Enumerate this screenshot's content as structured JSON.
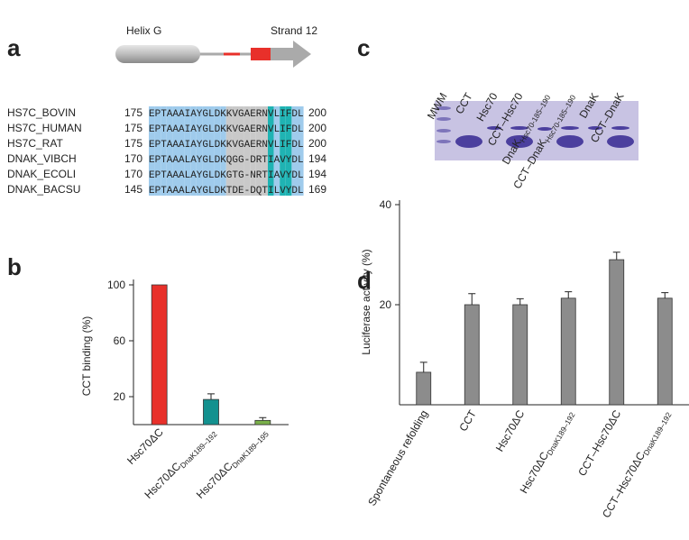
{
  "panel_labels": [
    "a",
    "b",
    "c",
    "d"
  ],
  "alignment": {
    "features": [
      "Helix G",
      "Strand 12"
    ],
    "rows": [
      {
        "name": "HS7C_BOVIN",
        "start": 175,
        "seq": "EPTAAAIAYGLDKKVGAERNVLIFDL",
        "end": 200
      },
      {
        "name": "HS7C_HUMAN",
        "start": 175,
        "seq": "EPTAAAIAYGLDKKVGAERNVLIFDL",
        "end": 200
      },
      {
        "name": "HS7C_RAT",
        "start": 175,
        "seq": "EPTAAAIAYGLDKKVGAERNVLIFDL",
        "end": 200
      },
      {
        "name": "DNAK_VIBCH",
        "start": 170,
        "seq": "EPTAAALAYGLDKQGG-DRTIAVYDL",
        "end": 194
      },
      {
        "name": "DNAK_ECOLI",
        "start": 170,
        "seq": "EPTAAALAYGLDKGTG-NRTIAVYDL",
        "end": 194
      },
      {
        "name": "DNAK_BACSU",
        "start": 145,
        "seq": "EPTAAALAYGLDKTDE-DQTILVYDL",
        "end": 169
      }
    ]
  },
  "gel": {
    "lanes": [
      "MWM",
      "CCT",
      "Hsc70",
      "CCT–Hsc70",
      "DnaK",
      "CCT–DnaK",
      "DnaK",
      "CCT–DnaK"
    ],
    "lane_subscripts": [
      null,
      null,
      null,
      null,
      "Hsc70-185–190",
      "Hsc70-185–190",
      null,
      null
    ]
  },
  "chart_data": [
    {
      "type": "bar",
      "y_label": "CCT binding (%)",
      "categories": [
        "Hsc70ΔC",
        "Hsc70ΔC",
        "Hsc70ΔC"
      ],
      "category_subscripts": [
        null,
        "DnaK189–192",
        "DnaK189–195"
      ],
      "values": [
        100,
        18,
        3
      ],
      "errors": [
        0,
        4,
        2
      ],
      "colors": [
        "#e8302a",
        "#13918f",
        "#7ab04a"
      ],
      "ylim": [
        0,
        100
      ],
      "yticks": [
        20,
        60,
        100
      ]
    },
    {
      "type": "bar",
      "y_label": "Luciferase activity (%)",
      "categories": [
        "Spontaneous refolding",
        "CCT",
        "Hsc70ΔC",
        "Hsc70ΔC",
        "CCT–Hsc70ΔC",
        "CCT–Hsc70ΔC"
      ],
      "category_subscripts": [
        null,
        null,
        null,
        "DnaK189–192",
        null,
        "DnaK189–192"
      ],
      "values": [
        6.5,
        20,
        20,
        21.3,
        29,
        21.3
      ],
      "errors": [
        2,
        2.2,
        1.2,
        1.3,
        1.5,
        1.1
      ],
      "color": "#8c8c8c",
      "ylim": [
        0,
        40
      ],
      "yticks": [
        20,
        40
      ]
    }
  ]
}
